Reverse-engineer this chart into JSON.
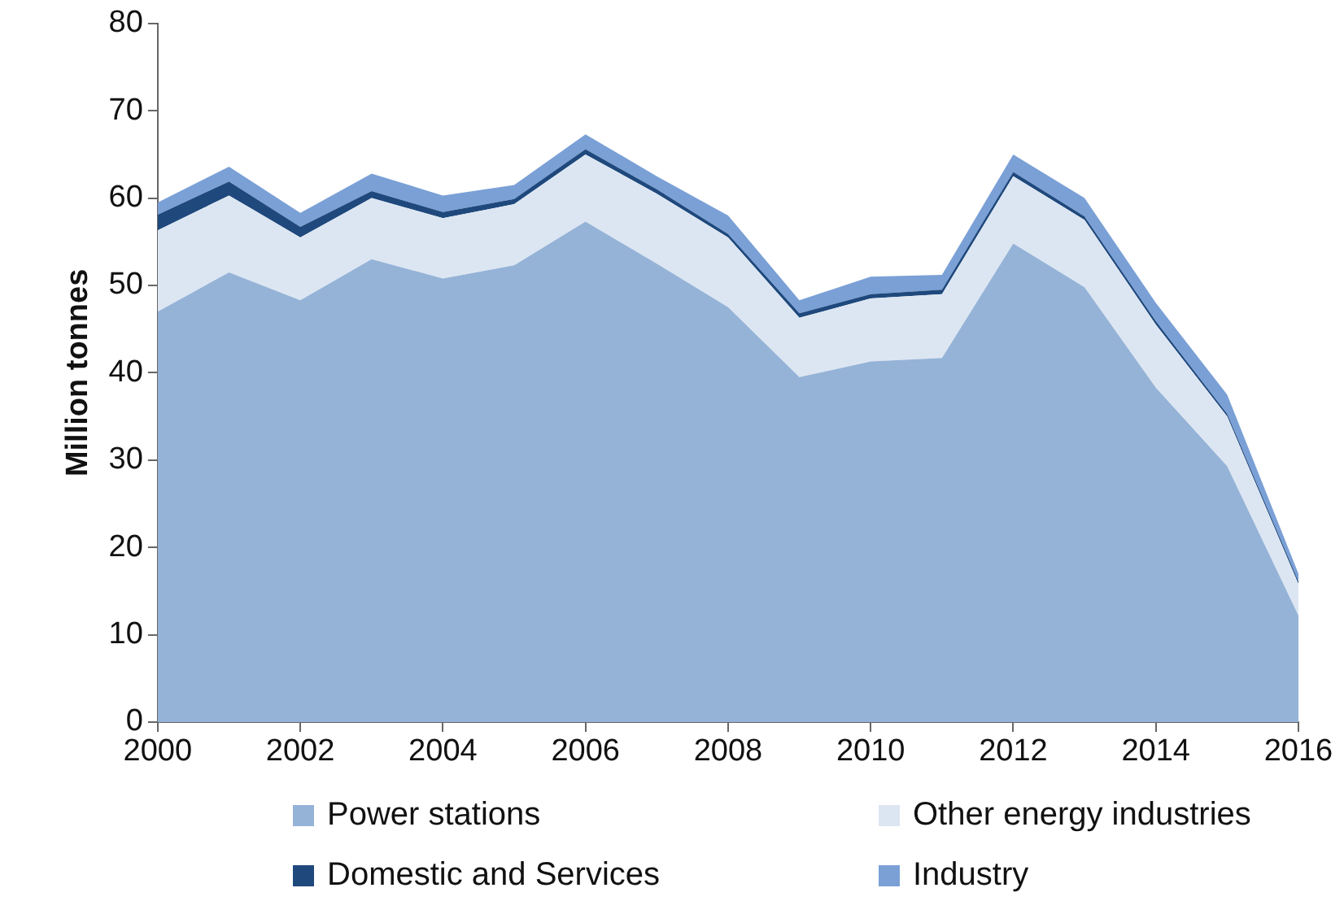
{
  "chart_data": {
    "type": "area",
    "stacked": true,
    "ylabel": "Million tonnes",
    "x": [
      2000,
      2001,
      2002,
      2003,
      2004,
      2005,
      2006,
      2007,
      2008,
      2009,
      2010,
      2011,
      2012,
      2013,
      2014,
      2015,
      2016
    ],
    "xlim": [
      2000,
      2016
    ],
    "xticks": [
      2000,
      2002,
      2004,
      2006,
      2008,
      2010,
      2012,
      2014,
      2016
    ],
    "ylim": [
      0,
      80
    ],
    "yticks": [
      0,
      10,
      20,
      30,
      40,
      50,
      60,
      70,
      80
    ],
    "grid": false,
    "legend": "bottom",
    "series": [
      {
        "name": "Power stations",
        "color": "#95b3d7",
        "values": [
          47,
          51.5,
          48.3,
          53,
          50.8,
          52.3,
          57.3,
          52.5,
          47.5,
          39.5,
          41.3,
          41.7,
          54.8,
          49.8,
          38.3,
          29.3,
          12.2
        ]
      },
      {
        "name": "Other energy industries",
        "color": "#dce6f2",
        "values": [
          9.3,
          8.8,
          7.2,
          7,
          6.9,
          7,
          7.7,
          8,
          8,
          6.8,
          7.2,
          7.3,
          7.7,
          7.7,
          7.2,
          5.7,
          3.6
        ]
      },
      {
        "name": "Domestic and Services",
        "color": "#1f497d",
        "values": [
          1.8,
          1.6,
          1.2,
          0.8,
          0.7,
          0.6,
          0.6,
          0.5,
          0.4,
          0.5,
          0.5,
          0.5,
          0.5,
          0.4,
          0.4,
          0.3,
          0.3
        ]
      },
      {
        "name": "Industry",
        "color": "#7aa0d6",
        "values": [
          1.4,
          1.7,
          1.6,
          2,
          1.9,
          1.6,
          1.7,
          1.5,
          2.1,
          1.5,
          2,
          1.7,
          2,
          2.1,
          2.1,
          2.2,
          0.9
        ]
      }
    ]
  }
}
